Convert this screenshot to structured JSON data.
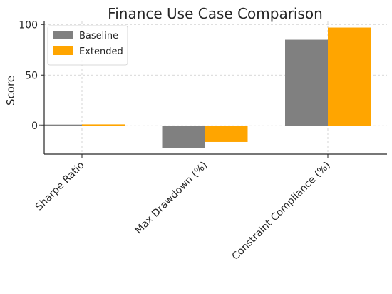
{
  "chart_data": {
    "type": "bar",
    "title": "Finance Use Case Comparison",
    "xlabel": "",
    "ylabel": "Score",
    "categories": [
      "Sharpe Ratio",
      "Max Drawdown (%)",
      "Constraint Compliance (%)"
    ],
    "series": [
      {
        "name": "Baseline",
        "values": [
          1.1,
          -22,
          85
        ],
        "color": "#808080"
      },
      {
        "name": "Extended",
        "values": [
          1.3,
          -16,
          97
        ],
        "color": "#FFA500"
      }
    ],
    "ylim": [
      -28,
      103
    ],
    "yticks": [
      0,
      50,
      100
    ],
    "grid": true,
    "legend_position": "top-left"
  }
}
